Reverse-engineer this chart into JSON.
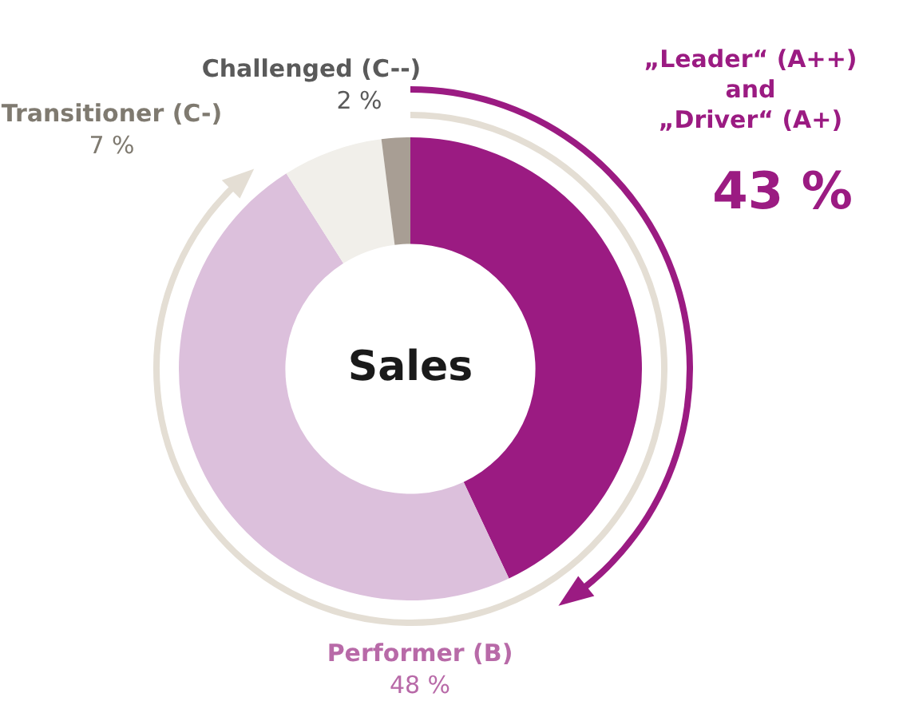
{
  "chart_data": {
    "type": "donut",
    "title": "Sales",
    "categories": [
      "„Leader“ (A++)\nand\n„Driver“ (A+)",
      "Performer (B)",
      "Transitioner (C-)",
      "Challenged (C--)"
    ],
    "values": [
      43,
      48,
      7,
      2
    ],
    "colors": [
      "#9b1b82",
      "#dcc0dc",
      "#f1efea",
      "#a89e94"
    ],
    "value_labels": [
      "43 %",
      "48 %",
      "7 %",
      "2 %"
    ],
    "legend": false
  }
}
